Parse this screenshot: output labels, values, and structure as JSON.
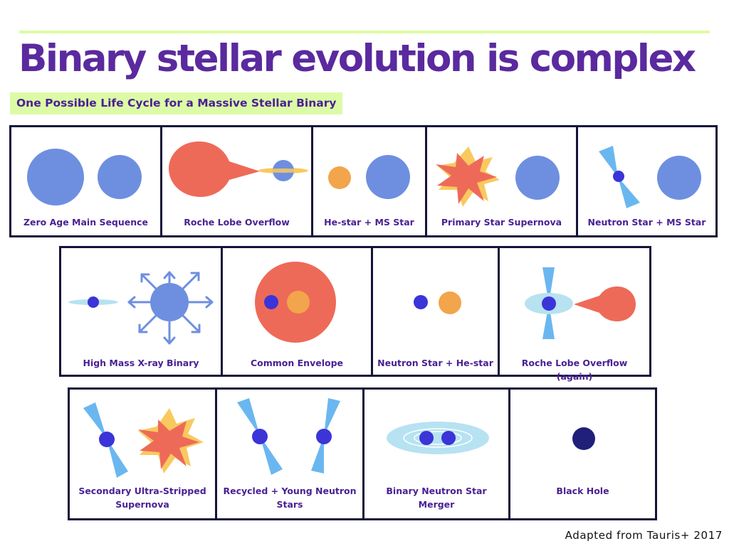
{
  "title": "Binary stellar evolution is complex",
  "subtitle": "One Possible Life Cycle for a Massive Stellar Binary",
  "credit": "Adapted from Tauris+ 2017",
  "colors": {
    "title": "#5a2a9e",
    "subtitle_bg": "#dcfba6",
    "ms_star": "#6e8fe0",
    "giant": "#ee6a58",
    "he_star": "#f2a54a",
    "neutron_star": "#3b34d8",
    "beam": "#6ab7f0",
    "disk": "#b7e2f2",
    "black_hole": "#20207a",
    "supernova_flash": "#f9c95e",
    "panel_border": "#14143a"
  },
  "stages": [
    {
      "label": "Zero Age Main Sequence",
      "icons": [
        "ms-star-icon",
        "ms-star-icon"
      ]
    },
    {
      "label": "Roche Lobe Overflow",
      "icons": [
        "giant-star-icon",
        "accretion-disk-icon",
        "ms-star-icon"
      ]
    },
    {
      "label": "He-star + MS Star",
      "icons": [
        "he-star-icon",
        "ms-star-icon"
      ]
    },
    {
      "label": "Primary Star Supernova",
      "icons": [
        "supernova-icon",
        "ms-star-icon"
      ]
    },
    {
      "label": "Neutron Star + MS Star",
      "icons": [
        "neutron-star-icon",
        "ms-star-icon"
      ]
    },
    {
      "label": "High Mass X-ray Binary",
      "icons": [
        "neutron-star-icon",
        "accretion-disk-icon",
        "stellar-wind-star-icon"
      ]
    },
    {
      "label": "Common Envelope",
      "icons": [
        "envelope-icon",
        "neutron-star-icon",
        "he-star-icon"
      ]
    },
    {
      "label": "Neutron Star + He-star",
      "icons": [
        "neutron-star-icon",
        "he-star-icon"
      ]
    },
    {
      "label": "Roche Lobe Overflow (again)",
      "icons": [
        "neutron-star-icon",
        "accretion-disk-icon",
        "he-star-teardrop-icon"
      ]
    },
    {
      "label": "Secondary Ultra-Stripped Supernova",
      "icons": [
        "neutron-star-icon",
        "supernova-icon"
      ]
    },
    {
      "label": "Recycled + Young Neutron Stars",
      "icons": [
        "neutron-star-icon",
        "neutron-star-icon"
      ]
    },
    {
      "label": "Binary Neutron Star Merger",
      "icons": [
        "merger-disk-icon",
        "neutron-star-icon",
        "neutron-star-icon"
      ]
    },
    {
      "label": "Black Hole",
      "icons": [
        "black-hole-icon"
      ]
    }
  ]
}
